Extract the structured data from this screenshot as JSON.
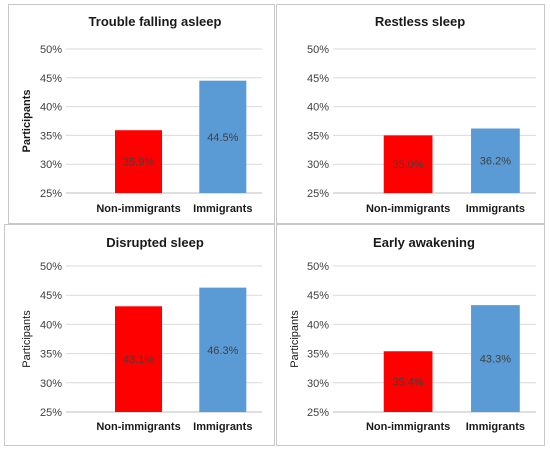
{
  "chart_data": [
    {
      "type": "bar",
      "title": "Trouble falling asleep",
      "ylabel": "Participants",
      "categories": [
        "Non-immigrants",
        "Immigrants"
      ],
      "values": [
        35.9,
        44.5
      ],
      "data_labels": [
        "35.9%",
        "44.5%"
      ],
      "colors": [
        "#ff0000",
        "#5b9bd5"
      ],
      "ylim": [
        25,
        50
      ],
      "yticks": [
        "25%",
        "30%",
        "35%",
        "40%",
        "45%",
        "50%"
      ],
      "grid": true
    },
    {
      "type": "bar",
      "title": "Restless sleep",
      "ylabel": "",
      "categories": [
        "Non-immigrants",
        "Immigrants"
      ],
      "values": [
        35.0,
        36.2
      ],
      "data_labels": [
        "35.0%",
        "36.2%"
      ],
      "colors": [
        "#ff0000",
        "#5b9bd5"
      ],
      "ylim": [
        25,
        50
      ],
      "yticks": [
        "25%",
        "30%",
        "35%",
        "40%",
        "45%",
        "50%"
      ],
      "grid": true
    },
    {
      "type": "bar",
      "title": "Disrupted sleep",
      "ylabel": "Participants",
      "categories": [
        "Non-immigrants",
        "Immigrants"
      ],
      "values": [
        43.1,
        46.3
      ],
      "data_labels": [
        "43.1%",
        "46.3%"
      ],
      "colors": [
        "#ff0000",
        "#5b9bd5"
      ],
      "ylim": [
        25,
        50
      ],
      "yticks": [
        "25%",
        "30%",
        "35%",
        "40%",
        "45%",
        "50%"
      ],
      "grid": true
    },
    {
      "type": "bar",
      "title": "Early awakening",
      "ylabel": "Participants",
      "categories": [
        "Non-immigrants",
        "Immigrants"
      ],
      "values": [
        35.4,
        43.3
      ],
      "data_labels": [
        "35.4%",
        "43.3%"
      ],
      "colors": [
        "#ff0000",
        "#5b9bd5"
      ],
      "ylim": [
        25,
        50
      ],
      "yticks": [
        "25%",
        "30%",
        "35%",
        "40%",
        "45%",
        "50%"
      ],
      "grid": true
    }
  ]
}
